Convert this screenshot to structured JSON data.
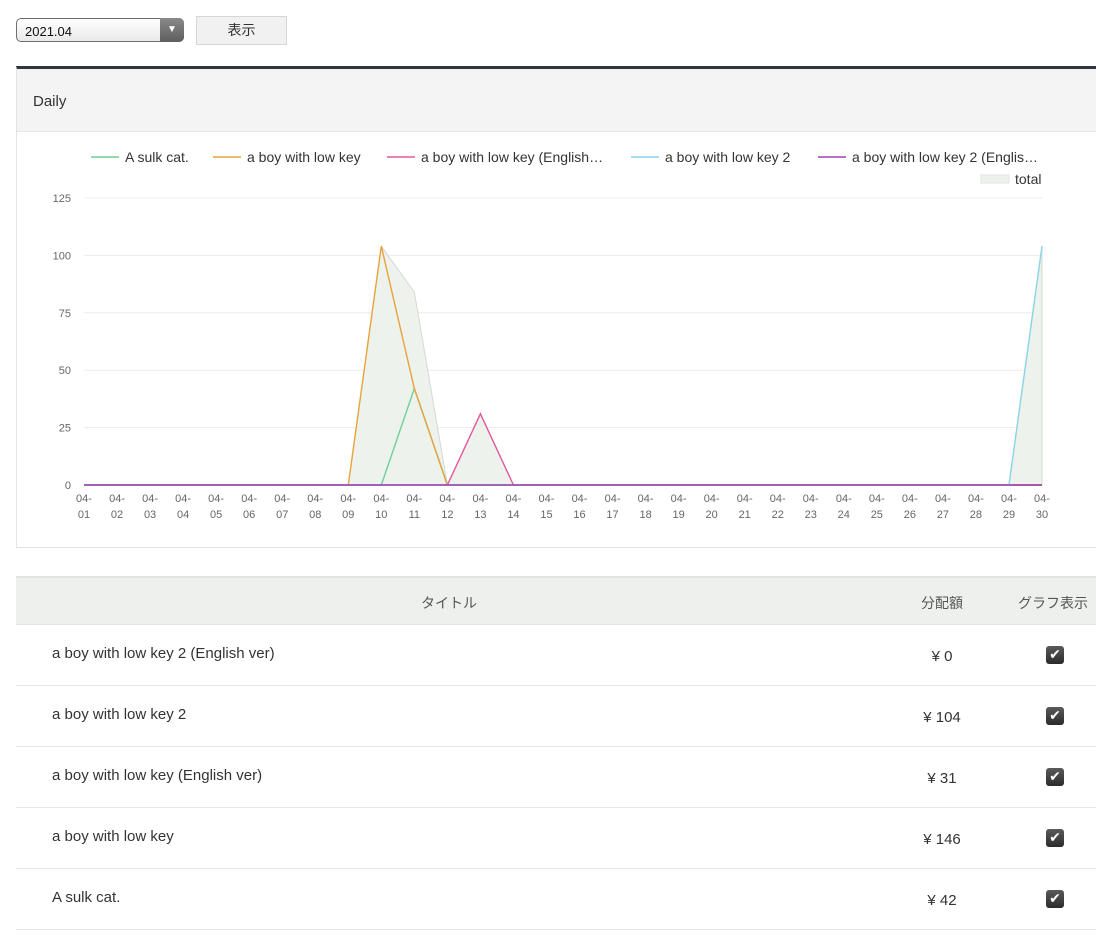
{
  "controls": {
    "month_value": "2021.04",
    "show_button_label": "表示"
  },
  "panel": {
    "title": "Daily"
  },
  "colors": {
    "A sulk cat.": "#6fcf97",
    "a boy with low key": "#e8a33b",
    "a boy with low key (English ver)": "#e05a9c",
    "a boy with low key 2": "#8ad4ea",
    "a boy with low key 2 (English ver)": "#9b45b3",
    "total": "#e6ece3"
  },
  "chart_data": {
    "type": "line",
    "title": "",
    "xlabel": "",
    "ylabel": "",
    "ylim": [
      0,
      125
    ],
    "yticks": [
      0,
      25,
      50,
      75,
      100,
      125
    ],
    "grid": true,
    "legend_position": "top",
    "categories": [
      "04-01",
      "04-02",
      "04-03",
      "04-04",
      "04-05",
      "04-06",
      "04-07",
      "04-08",
      "04-09",
      "04-10",
      "04-11",
      "04-12",
      "04-13",
      "04-14",
      "04-15",
      "04-16",
      "04-17",
      "04-18",
      "04-19",
      "04-20",
      "04-21",
      "04-22",
      "04-23",
      "04-24",
      "04-25",
      "04-26",
      "04-27",
      "04-28",
      "04-29",
      "04-30"
    ],
    "legend_labels": [
      "A sulk cat.",
      "a boy with low key",
      "a boy with low key (English…",
      "a boy with low key 2",
      "a boy with low key 2 (Englis…",
      "total"
    ],
    "series": [
      {
        "name": "A sulk cat.",
        "color": "#6fcf97",
        "values": [
          0,
          0,
          0,
          0,
          0,
          0,
          0,
          0,
          0,
          0,
          42,
          0,
          0,
          0,
          0,
          0,
          0,
          0,
          0,
          0,
          0,
          0,
          0,
          0,
          0,
          0,
          0,
          0,
          0,
          0
        ]
      },
      {
        "name": "a boy with low key",
        "color": "#e8a33b",
        "values": [
          0,
          0,
          0,
          0,
          0,
          0,
          0,
          0,
          0,
          104,
          42,
          0,
          0,
          0,
          0,
          0,
          0,
          0,
          0,
          0,
          0,
          0,
          0,
          0,
          0,
          0,
          0,
          0,
          0,
          0
        ]
      },
      {
        "name": "a boy with low key (English…",
        "color": "#e05a9c",
        "values": [
          0,
          0,
          0,
          0,
          0,
          0,
          0,
          0,
          0,
          0,
          0,
          0,
          31,
          0,
          0,
          0,
          0,
          0,
          0,
          0,
          0,
          0,
          0,
          0,
          0,
          0,
          0,
          0,
          0,
          0
        ]
      },
      {
        "name": "a boy with low key 2",
        "color": "#8ad4ea",
        "values": [
          0,
          0,
          0,
          0,
          0,
          0,
          0,
          0,
          0,
          0,
          0,
          0,
          0,
          0,
          0,
          0,
          0,
          0,
          0,
          0,
          0,
          0,
          0,
          0,
          0,
          0,
          0,
          0,
          0,
          104
        ]
      },
      {
        "name": "a boy with low key 2 (Englis…",
        "color": "#9b45b3",
        "values": [
          0,
          0,
          0,
          0,
          0,
          0,
          0,
          0,
          0,
          0,
          0,
          0,
          0,
          0,
          0,
          0,
          0,
          0,
          0,
          0,
          0,
          0,
          0,
          0,
          0,
          0,
          0,
          0,
          0,
          0
        ]
      },
      {
        "name": "total",
        "color": "#e6ece3",
        "area": true,
        "values": [
          0,
          0,
          0,
          0,
          0,
          0,
          0,
          0,
          0,
          104,
          84,
          0,
          31,
          0,
          0,
          0,
          0,
          0,
          0,
          0,
          0,
          0,
          0,
          0,
          0,
          0,
          0,
          0,
          0,
          104
        ]
      }
    ]
  },
  "table": {
    "headers": {
      "title": "タイトル",
      "amount": "分配額",
      "graph": "グラフ表示"
    },
    "rows": [
      {
        "title": "a boy with low key 2 (English ver)",
        "amount": "¥ 0",
        "graph_checked": true
      },
      {
        "title": "a boy with low key 2",
        "amount": "¥ 104",
        "graph_checked": true
      },
      {
        "title": "a boy with low key (English ver)",
        "amount": "¥ 31",
        "graph_checked": true
      },
      {
        "title": "a boy with low key",
        "amount": "¥ 146",
        "graph_checked": true
      },
      {
        "title": "A sulk cat.",
        "amount": "¥ 42",
        "graph_checked": true
      }
    ]
  }
}
